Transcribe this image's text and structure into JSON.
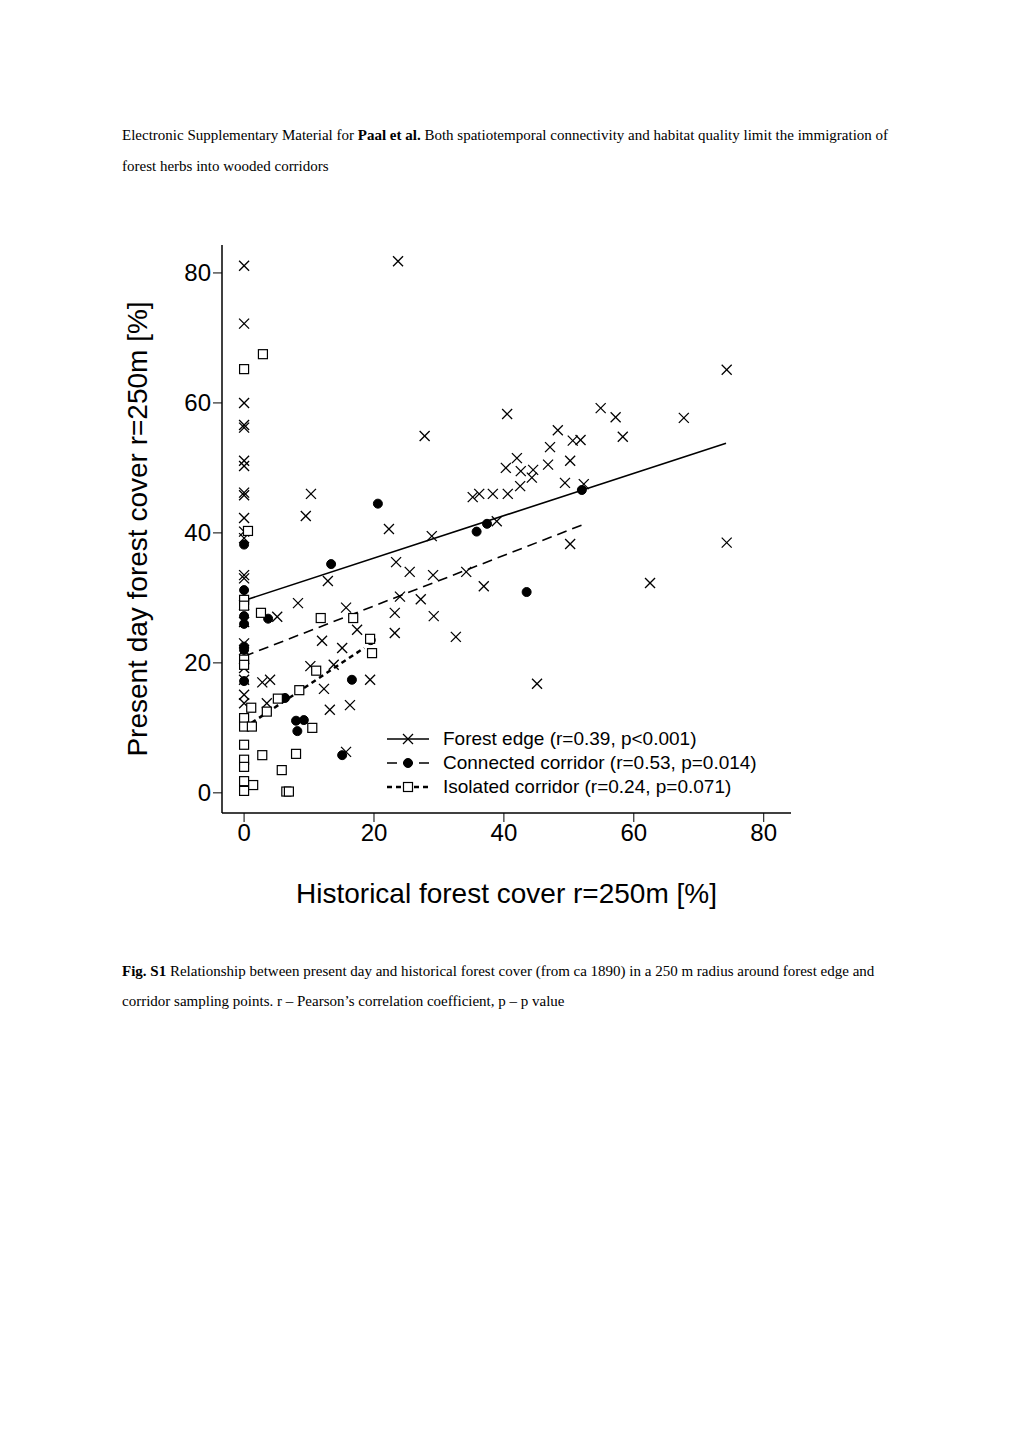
{
  "header": {
    "prefix": "Electronic Supplementary Material for ",
    "authors": "Paal et al.",
    "title": " Both spatiotemporal connectivity and habitat quality limit the immigration of forest herbs into wooded corridors"
  },
  "caption": {
    "label": "Fig. S1",
    "text": " Relationship between present day and historical forest cover (from ca 1890) in a 250 m radius around forest edge and corridor sampling points. r – Pearson’s correlation coefficient, p – p value"
  },
  "chart_data": {
    "type": "scatter",
    "x_label": "Historical forest cover r=250m [%]",
    "y_label": "Present day forest cover r=250m [%]",
    "xlim": [
      -3.4,
      84.2
    ],
    "ylim": [
      -3.1,
      84.3
    ],
    "xticks": [
      0,
      20,
      40,
      60,
      80
    ],
    "yticks": [
      0,
      20,
      40,
      60,
      80
    ],
    "grid": false,
    "legend": "bottom-right",
    "series": [
      {
        "name": "Forest edge (r=0.39, p<0.001)",
        "color": "#000000",
        "marker": "x",
        "line_style": "solid",
        "fit": {
          "x": [
            0,
            74.2
          ],
          "y": [
            29.6,
            53.8
          ]
        },
        "x": [
          0,
          0,
          0,
          0,
          0,
          0,
          0,
          0,
          0,
          0,
          0,
          0,
          0,
          0,
          0,
          0,
          0,
          0,
          0,
          0,
          0,
          0,
          23.7,
          5.1,
          2.8,
          4,
          3.5,
          8.3,
          9.5,
          10.3,
          10.2,
          12,
          12.3,
          12.9,
          13.2,
          13.8,
          15.1,
          15.7,
          16.3,
          15.7,
          17.4,
          19.4,
          22.3,
          23.4,
          23.2,
          23.2,
          24,
          25.5,
          27.2,
          27.8,
          28.9,
          29.1,
          29.2,
          32.6,
          34.2,
          35.2,
          36.2,
          36.9,
          38.3,
          38.9,
          40.3,
          40.6,
          40.5,
          42,
          42.6,
          42.5,
          44.3,
          44.5,
          45.1,
          46.8,
          47.1,
          48.3,
          49.4,
          50.2,
          50.2,
          50.6,
          51.8,
          52.3,
          54.9,
          57.2,
          58.3,
          62.5,
          67.7,
          74.3,
          74.3
        ],
        "y": [
          81.1,
          72.2,
          60,
          56.6,
          56.2,
          51.1,
          50.3,
          46.2,
          45.8,
          42.3,
          40.2,
          39.2,
          33.5,
          33,
          28.9,
          26.3,
          23,
          22,
          19.2,
          17.4,
          15.1,
          13.8,
          81.8,
          27.1,
          17,
          17.4,
          13.8,
          29.2,
          42.6,
          46,
          19.5,
          23.4,
          16,
          32.6,
          12.8,
          19.7,
          22.3,
          28.5,
          13.5,
          6.3,
          25.1,
          17.4,
          40.6,
          35.5,
          27.7,
          24.6,
          30.2,
          34,
          29.8,
          54.9,
          39.5,
          33.5,
          27.2,
          24,
          34,
          45.5,
          46,
          31.8,
          46,
          41.8,
          50,
          46,
          58.3,
          51.5,
          49.5,
          47.2,
          48.5,
          49.7,
          16.8,
          50.5,
          53.2,
          55.8,
          47.7,
          51.1,
          38.3,
          54.2,
          54.3,
          47.5,
          59.2,
          57.8,
          54.8,
          32.3,
          57.7,
          65.1,
          38.5
        ]
      },
      {
        "name": "Connected corridor (r=0.53, p=0.014)",
        "color": "#000000",
        "marker": "circle",
        "line_style": "dashed",
        "fit": {
          "x": [
            0,
            52
          ],
          "y": [
            21,
            41.2
          ]
        },
        "x": [
          0,
          0,
          0,
          0,
          0,
          0,
          0,
          3.7,
          6.3,
          8,
          8.2,
          9.2,
          13.4,
          15.1,
          16.6,
          19.5,
          20.6,
          35.8,
          37.4,
          43.5,
          52
        ],
        "y": [
          38.2,
          31.2,
          27.2,
          26,
          22.5,
          22,
          17.2,
          26.8,
          14.6,
          11.1,
          9.5,
          11.2,
          35.2,
          5.8,
          17.4,
          23.5,
          44.5,
          40.2,
          41.4,
          30.9,
          46.6
        ]
      },
      {
        "name": "Isolated corridor (r=0.24, p=0.071)",
        "color": "#000000",
        "marker": "square",
        "line_style": "short-dashed",
        "fit": {
          "x": [
            0,
            18.5
          ],
          "y": [
            10,
            22.3
          ]
        },
        "x": [
          0,
          0,
          0,
          0,
          0,
          0,
          0,
          0,
          0,
          0,
          0,
          0,
          2.9,
          0.6,
          1.1,
          1.2,
          1.4,
          2.6,
          2.8,
          3.5,
          5.8,
          5.2,
          6.5,
          6.9,
          8,
          8.5,
          10.5,
          11.1,
          11.8,
          16.8,
          19.7,
          19.4
        ],
        "y": [
          65.2,
          29.7,
          28.8,
          20.5,
          19.7,
          11.5,
          10.2,
          7.4,
          5.1,
          4,
          1.8,
          0.3,
          67.5,
          40.3,
          13.1,
          10.2,
          1.2,
          27.7,
          5.8,
          12.5,
          3.5,
          14.5,
          0.2,
          0.2,
          6,
          15.8,
          10,
          18.8,
          26.9,
          26.9,
          21.5,
          23.7
        ]
      }
    ]
  }
}
